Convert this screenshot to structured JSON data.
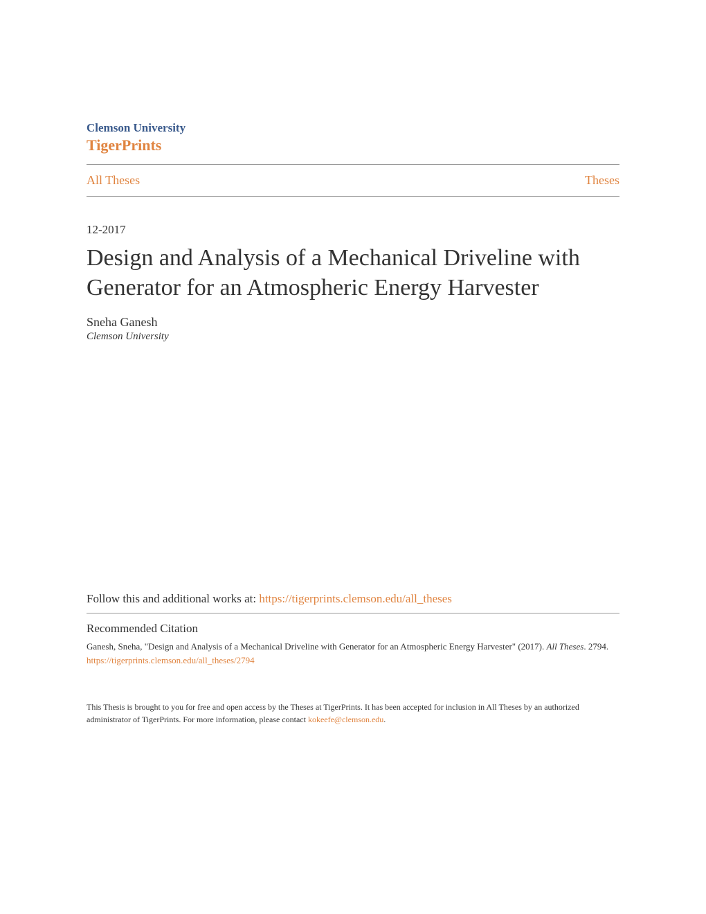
{
  "header": {
    "institution": "Clemson University",
    "repository": "TigerPrints",
    "institution_color": "#3a5a8c",
    "repository_color": "#e08440"
  },
  "nav": {
    "left_link": "All Theses",
    "right_link": "Theses"
  },
  "paper": {
    "date": "12-2017",
    "title": "Design and Analysis of a Mechanical Driveline with Generator for an Atmospheric Energy Harvester",
    "author_name": "Sneha Ganesh",
    "author_affiliation": "Clemson University"
  },
  "follow": {
    "prefix_text": "Follow this and additional works at: ",
    "link_text": "https://tigerprints.clemson.edu/all_theses"
  },
  "citation": {
    "heading": "Recommended Citation",
    "text_part1": "Ganesh, Sneha, \"Design and Analysis of a Mechanical Driveline with Generator for an Atmospheric Energy Harvester\" (2017). ",
    "text_italic": "All Theses",
    "text_part2": ". 2794.",
    "link_text": "https://tigerprints.clemson.edu/all_theses/2794"
  },
  "footer": {
    "text_part1": "This Thesis is brought to you for free and open access by the Theses at TigerPrints. It has been accepted for inclusion in All Theses by an authorized administrator of TigerPrints. For more information, please contact ",
    "link_text": "kokeefe@clemson.edu",
    "text_part2": "."
  },
  "styles": {
    "link_color": "#e08440",
    "text_color": "#333333",
    "divider_color": "#999999",
    "background_color": "#ffffff",
    "title_fontsize": 34,
    "body_fontsize": 17,
    "citation_fontsize": 13,
    "footer_fontsize": 12
  }
}
